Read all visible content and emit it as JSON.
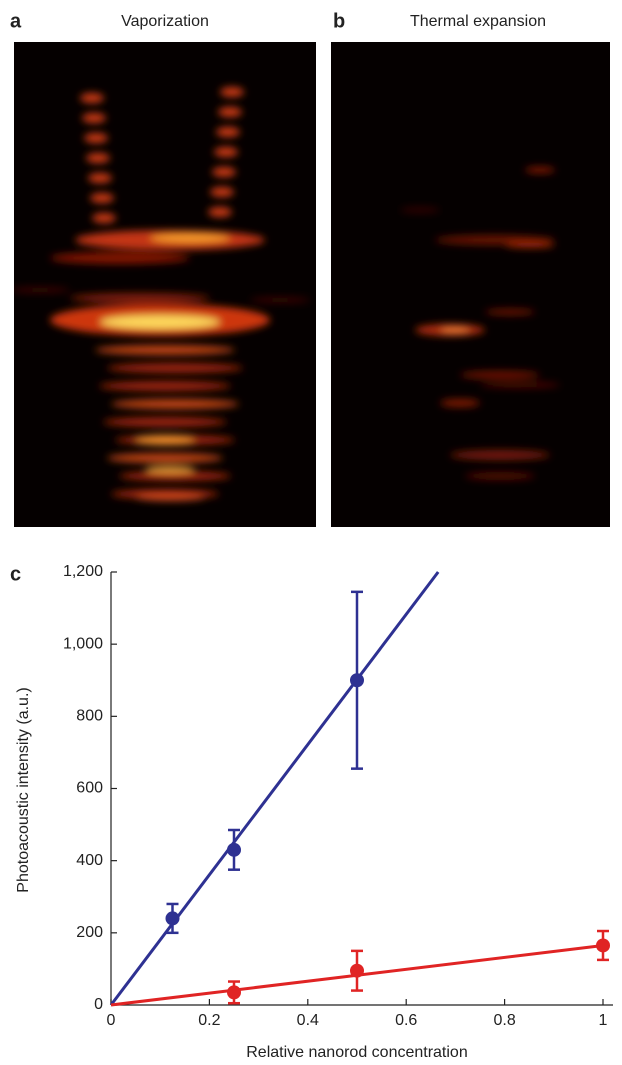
{
  "panels": [
    {
      "letter": "a",
      "title": "Vaporization"
    },
    {
      "letter": "b",
      "title": "Thermal expansion"
    }
  ],
  "chart_data": {
    "type": "scatter",
    "panel_letter": "c",
    "xlabel": "Relative nanorod concentration",
    "ylabel": "Photoacoustic intensity (a.u.)",
    "xlim": [
      0,
      1.02
    ],
    "ylim": [
      0,
      1200
    ],
    "xticks": [
      0,
      0.2,
      0.4,
      0.6,
      0.8,
      1
    ],
    "yticks": [
      0,
      200,
      400,
      600,
      800,
      {
        "value": 1000,
        "label": "1,000"
      },
      {
        "value": 1200,
        "label": "1,200"
      }
    ],
    "series": [
      {
        "color": "#2e3192",
        "x": [
          0.125,
          0.25,
          0.5
        ],
        "values": [
          240,
          430,
          900
        ],
        "errors": [
          40,
          55,
          245
        ],
        "fit": {
          "x": [
            0,
            0.665
          ],
          "values": [
            0,
            1200
          ]
        }
      },
      {
        "color": "#e02424",
        "x": [
          0.25,
          0.5,
          1
        ],
        "values": [
          35,
          95,
          165
        ],
        "errors": [
          30,
          55,
          40
        ],
        "fit": {
          "x": [
            0,
            1
          ],
          "values": [
            0,
            165
          ]
        }
      }
    ]
  }
}
